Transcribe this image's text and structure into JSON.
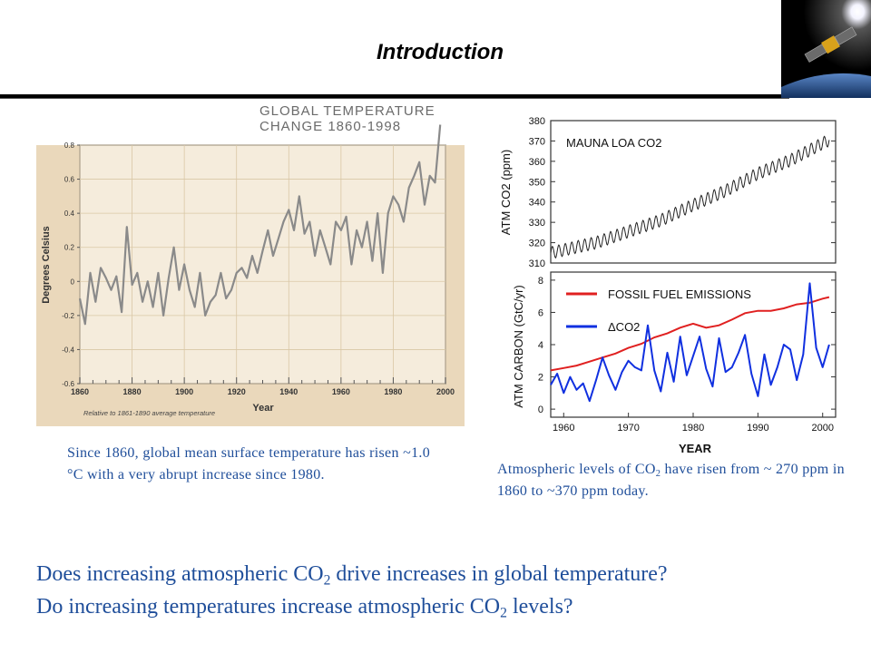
{
  "slide": {
    "title": "Introduction",
    "caption_left": "Since 1860, global mean surface temperature has risen ~1.0 °C with a very abrupt increase since 1980.",
    "caption_right": {
      "pre": "Atmospheric levels of CO",
      "sub": "2",
      "post": " have risen from ~ 270 ppm in 1860 to ~370 ppm today."
    },
    "question_1": {
      "pre": "Does increasing atmospheric CO",
      "sub": "2",
      "post": " drive increases in global temperature?"
    },
    "question_2": {
      "pre": "Do increasing temperatures increase atmospheric CO",
      "sub": "2",
      "post": " levels?"
    }
  },
  "chart_data": [
    {
      "type": "line",
      "title": "GLOBAL  TEMPERATURE\nCHANGE  1860-1998",
      "xlabel": "Year",
      "ylabel": "Degrees Celsius",
      "note": "Relative to 1861-1890 average temperature",
      "xlim": [
        1860,
        2000
      ],
      "ylim": [
        -0.6,
        0.8
      ],
      "xticks": [
        1860,
        1880,
        1900,
        1920,
        1940,
        1960,
        1980,
        2000
      ],
      "yticks": [
        -0.6,
        -0.4,
        -0.2,
        0,
        0.2,
        0.4,
        0.6,
        0.8
      ],
      "ytick_labels": [
        "-0.6",
        "-0.4",
        "-0.2",
        "0",
        "0.2",
        "0.4",
        "0.6",
        "0.8"
      ],
      "grid": true,
      "colors": {
        "line": "#8a8a8a",
        "background": "#ead8bb",
        "frame": "#f5ecdc"
      },
      "series": [
        {
          "x": [
            1860,
            1862,
            1864,
            1866,
            1868,
            1870,
            1872,
            1874,
            1876,
            1878,
            1880,
            1882,
            1884,
            1886,
            1888,
            1890,
            1892,
            1894,
            1896,
            1898,
            1900,
            1902,
            1904,
            1906,
            1908,
            1910,
            1912,
            1914,
            1916,
            1918,
            1920,
            1922,
            1924,
            1926,
            1928,
            1930,
            1932,
            1934,
            1936,
            1938,
            1940,
            1942,
            1944,
            1946,
            1948,
            1950,
            1952,
            1954,
            1956,
            1958,
            1960,
            1962,
            1964,
            1966,
            1968,
            1970,
            1972,
            1974,
            1976,
            1978,
            1980,
            1982,
            1984,
            1986,
            1988,
            1990,
            1992,
            1994,
            1996,
            1998
          ],
          "values": [
            -0.1,
            -0.25,
            0.05,
            -0.12,
            0.08,
            0.02,
            -0.05,
            0.03,
            -0.18,
            0.32,
            -0.02,
            0.05,
            -0.12,
            0.0,
            -0.15,
            0.05,
            -0.2,
            0.02,
            0.2,
            -0.05,
            0.1,
            -0.05,
            -0.15,
            0.05,
            -0.2,
            -0.12,
            -0.08,
            0.05,
            -0.1,
            -0.05,
            0.05,
            0.08,
            0.02,
            0.15,
            0.05,
            0.18,
            0.3,
            0.15,
            0.25,
            0.35,
            0.42,
            0.3,
            0.5,
            0.28,
            0.35,
            0.15,
            0.3,
            0.2,
            0.1,
            0.35,
            0.3,
            0.38,
            0.1,
            0.3,
            0.2,
            0.35,
            0.12,
            0.4,
            0.05,
            0.4,
            0.5,
            0.45,
            0.35,
            0.55,
            0.62,
            0.7,
            0.45,
            0.62,
            0.58,
            0.92
          ]
        }
      ]
    },
    {
      "type": "line",
      "title": "MAUNA LOA CO2",
      "xlabel": "",
      "ylabel": "ATM CO2 (ppm)",
      "xlim": [
        1958,
        2002
      ],
      "ylim": [
        310,
        380
      ],
      "yticks": [
        310,
        320,
        330,
        340,
        350,
        360,
        370,
        380
      ],
      "grid": false,
      "colors": {
        "line": "#222222"
      },
      "series": [
        {
          "name": "MAUNA LOA CO2",
          "x": [
            1958,
            1965,
            1970,
            1975,
            1980,
            1985,
            1990,
            1995,
            2001
          ],
          "values": [
            315,
            320,
            325.5,
            331,
            338.5,
            345.5,
            354,
            360.5,
            370.5
          ],
          "seasonal_amplitude_ppm": 3
        }
      ]
    },
    {
      "type": "line",
      "title": "",
      "xlabel": "YEAR",
      "ylabel": "ATM CARBON (GtC/yr)",
      "xlim": [
        1958,
        2002
      ],
      "ylim": [
        -0.5,
        8.5
      ],
      "xticks": [
        1960,
        1970,
        1980,
        1990,
        2000
      ],
      "yticks": [
        0,
        2,
        4,
        6,
        8
      ],
      "grid": false,
      "legend": "top-left",
      "series": [
        {
          "name": "FOSSIL FUEL EMISSIONS",
          "color": "#e02020",
          "x": [
            1958,
            1960,
            1962,
            1964,
            1966,
            1968,
            1970,
            1972,
            1974,
            1976,
            1978,
            1980,
            1982,
            1984,
            1986,
            1988,
            1990,
            1992,
            1994,
            1996,
            1998,
            2000,
            2001
          ],
          "values": [
            2.4,
            2.55,
            2.7,
            2.95,
            3.2,
            3.45,
            3.8,
            4.05,
            4.45,
            4.7,
            5.05,
            5.3,
            5.05,
            5.2,
            5.55,
            5.95,
            6.1,
            6.1,
            6.25,
            6.5,
            6.6,
            6.85,
            6.95
          ]
        },
        {
          "name": "ΔCO2",
          "color": "#1030e0",
          "x": [
            1958,
            1959,
            1960,
            1961,
            1962,
            1963,
            1964,
            1965,
            1966,
            1967,
            1968,
            1969,
            1970,
            1971,
            1972,
            1973,
            1974,
            1975,
            1976,
            1977,
            1978,
            1979,
            1980,
            1981,
            1982,
            1983,
            1984,
            1985,
            1986,
            1987,
            1988,
            1989,
            1990,
            1991,
            1992,
            1993,
            1994,
            1995,
            1996,
            1997,
            1998,
            1999,
            2000,
            2001
          ],
          "values": [
            1.5,
            2.2,
            1.0,
            2.0,
            1.2,
            1.6,
            0.5,
            1.8,
            3.2,
            2.1,
            1.2,
            2.3,
            3.0,
            2.6,
            2.4,
            5.2,
            2.4,
            1.1,
            3.5,
            1.7,
            4.5,
            2.1,
            3.3,
            4.5,
            2.5,
            1.4,
            4.4,
            2.3,
            2.6,
            3.5,
            4.6,
            2.2,
            0.8,
            3.4,
            1.5,
            2.6,
            4.0,
            3.7,
            1.8,
            3.4,
            7.8,
            3.8,
            2.6,
            4.0
          ]
        }
      ]
    }
  ]
}
